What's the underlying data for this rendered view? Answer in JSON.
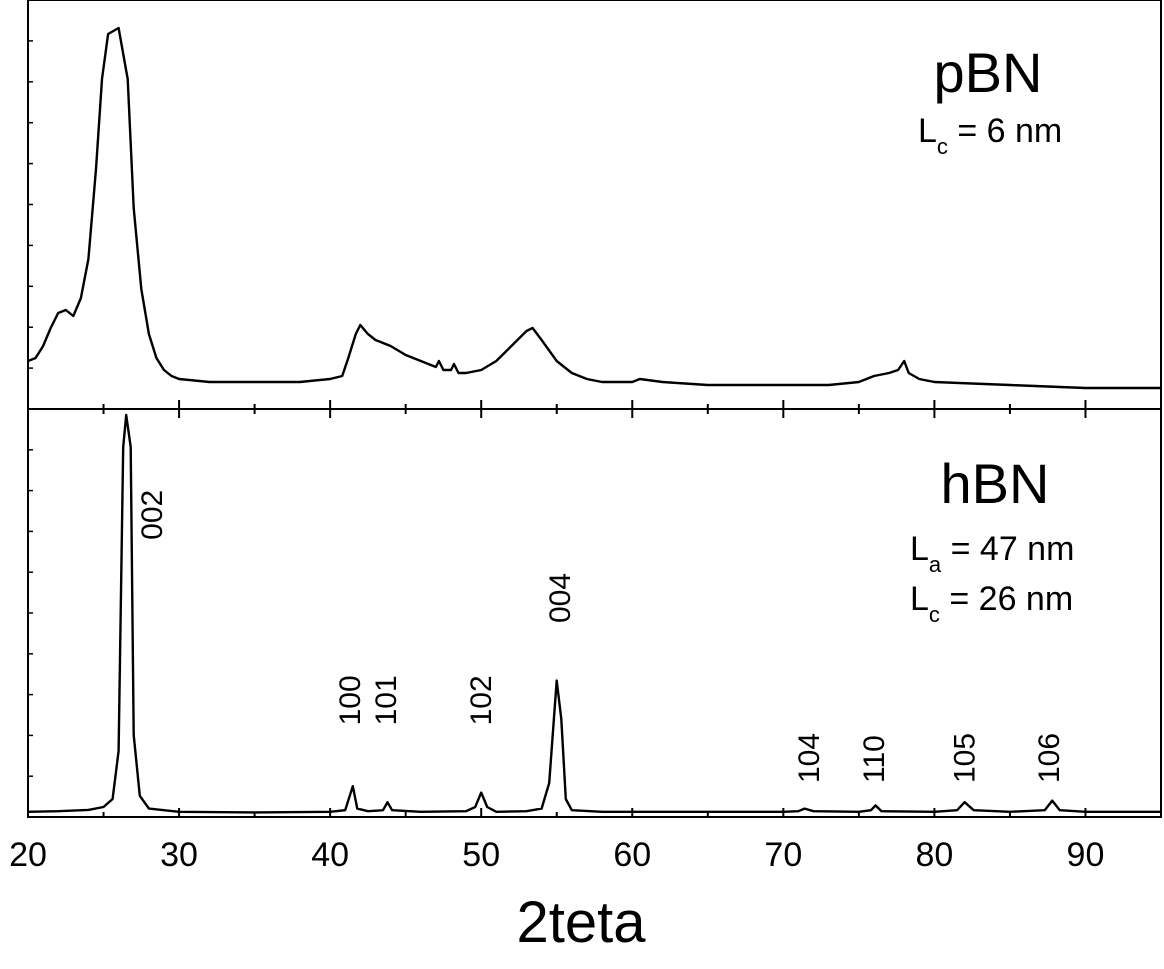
{
  "chart_data": {
    "type": "line",
    "xlabel": "2teta",
    "xlim": [
      20,
      95
    ],
    "x_ticks": [
      "20",
      "30",
      "40",
      "50",
      "60",
      "70",
      "80",
      "90"
    ],
    "y_scale": "arbitrary (no tick labels)",
    "panels": [
      {
        "id": "pbn",
        "sample": "pBN",
        "params": [
          {
            "base": "L",
            "sub": "c",
            "rest": " = 6 nm"
          }
        ],
        "peak_labels": [],
        "series": [
          {
            "name": "pBN",
            "points": [
              [
                20,
                0.11
              ],
              [
                20.5,
                0.12
              ],
              [
                21,
                0.16
              ],
              [
                21.5,
                0.22
              ],
              [
                22,
                0.27
              ],
              [
                22.5,
                0.28
              ],
              [
                23,
                0.26
              ],
              [
                23.5,
                0.32
              ],
              [
                24,
                0.45
              ],
              [
                24.5,
                0.75
              ],
              [
                24.9,
                1.05
              ],
              [
                25.3,
                1.2
              ],
              [
                26,
                1.22
              ],
              [
                26.6,
                1.05
              ],
              [
                27,
                0.62
              ],
              [
                27.5,
                0.35
              ],
              [
                28,
                0.2
              ],
              [
                28.5,
                0.12
              ],
              [
                29,
                0.08
              ],
              [
                29.5,
                0.06
              ],
              [
                30,
                0.05
              ],
              [
                32,
                0.04
              ],
              [
                35,
                0.04
              ],
              [
                38,
                0.04
              ],
              [
                40,
                0.05
              ],
              [
                40.8,
                0.06
              ],
              [
                41.2,
                0.12
              ],
              [
                41.7,
                0.2
              ],
              [
                42,
                0.23
              ],
              [
                42.5,
                0.2
              ],
              [
                43,
                0.18
              ],
              [
                44,
                0.16
              ],
              [
                45,
                0.13
              ],
              [
                46,
                0.11
              ],
              [
                47,
                0.09
              ],
              [
                47.2,
                0.11
              ],
              [
                47.5,
                0.08
              ],
              [
                48,
                0.08
              ],
              [
                48.2,
                0.1
              ],
              [
                48.5,
                0.07
              ],
              [
                49,
                0.07
              ],
              [
                50,
                0.08
              ],
              [
                51,
                0.11
              ],
              [
                52,
                0.16
              ],
              [
                53,
                0.21
              ],
              [
                53.4,
                0.22
              ],
              [
                54,
                0.18
              ],
              [
                55,
                0.11
              ],
              [
                56,
                0.07
              ],
              [
                57,
                0.05
              ],
              [
                58,
                0.04
              ],
              [
                60,
                0.04
              ],
              [
                60.5,
                0.05
              ],
              [
                62,
                0.04
              ],
              [
                65,
                0.03
              ],
              [
                70,
                0.03
              ],
              [
                73,
                0.03
              ],
              [
                75,
                0.04
              ],
              [
                76,
                0.06
              ],
              [
                77,
                0.07
              ],
              [
                77.6,
                0.08
              ],
              [
                78,
                0.11
              ],
              [
                78.3,
                0.07
              ],
              [
                79,
                0.05
              ],
              [
                80,
                0.04
              ],
              [
                85,
                0.03
              ],
              [
                90,
                0.02
              ],
              [
                95,
                0.02
              ]
            ]
          }
        ]
      },
      {
        "id": "hbn",
        "sample": "hBN",
        "params": [
          {
            "base": "L",
            "sub": "a",
            "rest": " = 47 nm"
          },
          {
            "base": "L",
            "sub": "c",
            "rest": " = 26 nm"
          }
        ],
        "peak_labels": [
          {
            "text": "002",
            "x": 28.2,
            "y": 0.86
          },
          {
            "text": "100",
            "x": 41.3,
            "y": 0.28
          },
          {
            "text": "101",
            "x": 43.7,
            "y": 0.28
          },
          {
            "text": "102",
            "x": 50.0,
            "y": 0.28
          },
          {
            "text": "004",
            "x": 55.2,
            "y": 0.6
          },
          {
            "text": "104",
            "x": 71.7,
            "y": 0.1
          },
          {
            "text": "110",
            "x": 76.0,
            "y": 0.1
          },
          {
            "text": "105",
            "x": 82.0,
            "y": 0.1
          },
          {
            "text": "106",
            "x": 87.6,
            "y": 0.1
          }
        ],
        "series": [
          {
            "name": "hBN",
            "points": [
              [
                20,
                0.01
              ],
              [
                22,
                0.012
              ],
              [
                24,
                0.016
              ],
              [
                25,
                0.025
              ],
              [
                25.6,
                0.05
              ],
              [
                26,
                0.2
              ],
              [
                26.3,
                1.15
              ],
              [
                26.5,
                1.25
              ],
              [
                26.8,
                1.15
              ],
              [
                27,
                0.25
              ],
              [
                27.4,
                0.06
              ],
              [
                28,
                0.02
              ],
              [
                30,
                0.01
              ],
              [
                35,
                0.008
              ],
              [
                40,
                0.01
              ],
              [
                41,
                0.015
              ],
              [
                41.5,
                0.09
              ],
              [
                41.8,
                0.02
              ],
              [
                42.5,
                0.012
              ],
              [
                43.5,
                0.015
              ],
              [
                43.8,
                0.04
              ],
              [
                44.1,
                0.015
              ],
              [
                46,
                0.01
              ],
              [
                49,
                0.012
              ],
              [
                49.6,
                0.025
              ],
              [
                50,
                0.07
              ],
              [
                50.4,
                0.025
              ],
              [
                51,
                0.01
              ],
              [
                53,
                0.012
              ],
              [
                54,
                0.02
              ],
              [
                54.5,
                0.1
              ],
              [
                55,
                0.42
              ],
              [
                55.3,
                0.3
              ],
              [
                55.6,
                0.05
              ],
              [
                56,
                0.015
              ],
              [
                58,
                0.01
              ],
              [
                65,
                0.01
              ],
              [
                70,
                0.01
              ],
              [
                71,
                0.012
              ],
              [
                71.4,
                0.02
              ],
              [
                72,
                0.012
              ],
              [
                75,
                0.01
              ],
              [
                75.8,
                0.015
              ],
              [
                76.1,
                0.03
              ],
              [
                76.5,
                0.012
              ],
              [
                80,
                0.01
              ],
              [
                81.5,
                0.015
              ],
              [
                82,
                0.04
              ],
              [
                82.6,
                0.015
              ],
              [
                85,
                0.01
              ],
              [
                87.3,
                0.015
              ],
              [
                87.8,
                0.045
              ],
              [
                88.3,
                0.015
              ],
              [
                90,
                0.01
              ],
              [
                95,
                0.01
              ]
            ]
          }
        ]
      }
    ],
    "grid": false,
    "legend": "none"
  }
}
